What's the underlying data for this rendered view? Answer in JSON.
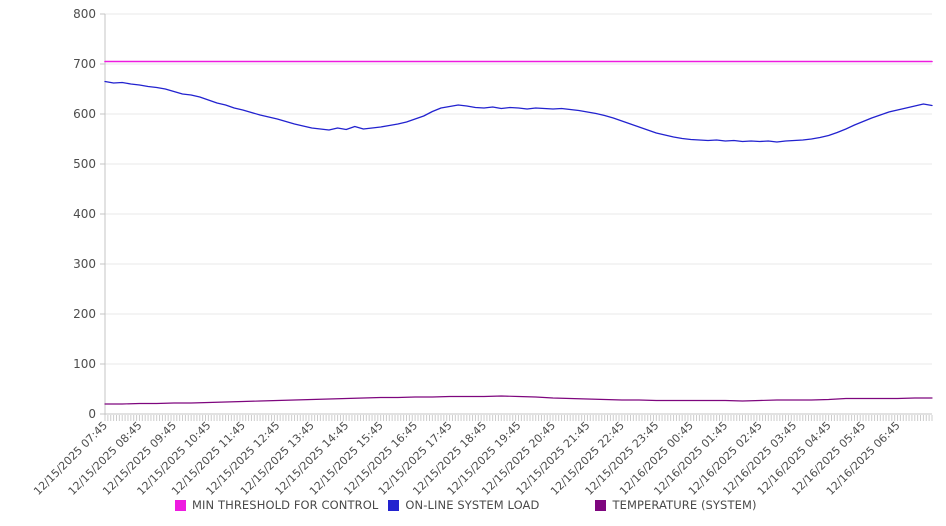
{
  "chart_data": {
    "type": "line",
    "title": "",
    "xlabel": "",
    "ylabel": "",
    "ylim": [
      0,
      800
    ],
    "y_ticks": [
      0,
      100,
      200,
      300,
      400,
      500,
      600,
      700,
      800
    ],
    "x_hours_span": 24,
    "grid": "horizontal",
    "legend_position": "bottom",
    "x_tick_labels": [
      "12/15/2025 07:45",
      "12/15/2025 08:45",
      "12/15/2025 09:45",
      "12/15/2025 10:45",
      "12/15/2025 11:45",
      "12/15/2025 12:45",
      "12/15/2025 13:45",
      "12/15/2025 14:45",
      "12/15/2025 15:45",
      "12/15/2025 16:45",
      "12/15/2025 17:45",
      "12/15/2025 18:45",
      "12/15/2025 19:45",
      "12/15/2025 20:45",
      "12/15/2025 21:45",
      "12/15/2025 22:45",
      "12/15/2025 23:45",
      "12/16/2025 00:45",
      "12/16/2025 01:45",
      "12/16/2025 02:45",
      "12/16/2025 03:45",
      "12/16/2025 04:45",
      "12/16/2025 05:45",
      "12/16/2025 06:45"
    ],
    "series": [
      {
        "name": "MIN THRESHOLD FOR CONTROL",
        "color": "#EE1BE0",
        "stroke_width": 1.6,
        "x_start": 0,
        "x_step": 24,
        "values": [
          705,
          705
        ]
      },
      {
        "name": "ON-LINE SYSTEM LOAD",
        "color": "#2222CF",
        "stroke_width": 1.3,
        "x_start": 0,
        "x_step": 0.25,
        "values": [
          665,
          662,
          663,
          660,
          658,
          655,
          653,
          650,
          645,
          640,
          638,
          634,
          628,
          622,
          618,
          612,
          608,
          603,
          598,
          594,
          590,
          585,
          580,
          576,
          572,
          570,
          568,
          572,
          569,
          575,
          570,
          572,
          574,
          577,
          580,
          584,
          590,
          596,
          605,
          612,
          615,
          618,
          616,
          613,
          612,
          614,
          611,
          613,
          612,
          610,
          612,
          611,
          610,
          611,
          609,
          607,
          604,
          601,
          597,
          592,
          586,
          580,
          574,
          568,
          562,
          558,
          554,
          551,
          549,
          548,
          547,
          548,
          546,
          547,
          545,
          546,
          545,
          546,
          544,
          546,
          547,
          548,
          550,
          553,
          557,
          563,
          570,
          578,
          585,
          592,
          598,
          604,
          608,
          612,
          616,
          620,
          617
        ]
      },
      {
        "name": "TEMPERATURE (SYSTEM)",
        "color": "#7E067E",
        "stroke_width": 1.2,
        "x_start": 0,
        "x_step": 0.5,
        "values": [
          20,
          20,
          21,
          21,
          22,
          22,
          23,
          24,
          25,
          26,
          27,
          28,
          29,
          30,
          31,
          32,
          33,
          33,
          34,
          34,
          35,
          35,
          35,
          36,
          35,
          34,
          32,
          31,
          30,
          29,
          28,
          28,
          27,
          27,
          27,
          27,
          27,
          26,
          27,
          28,
          28,
          28,
          29,
          31,
          31,
          31,
          31,
          32,
          32
        ]
      }
    ],
    "colors": {
      "grid": "#e9e9e9",
      "axis": "#c4c4c4",
      "minor_tick": "#cccccc",
      "tick_text": "#4d4d4d"
    }
  }
}
